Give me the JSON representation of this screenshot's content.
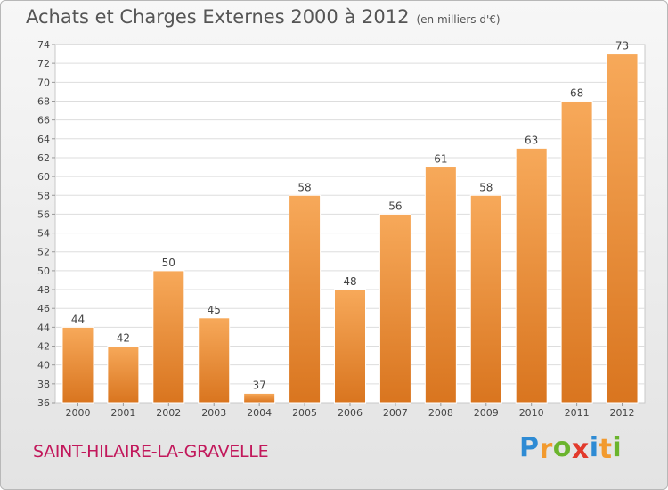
{
  "header": {
    "title": "Achats et Charges Externes 2000 à 2012",
    "unit_note": "(en milliers d'€)"
  },
  "commune": "SAINT-HILAIRE-LA-GRAVELLE",
  "brand": {
    "letters": [
      "P",
      "r",
      "o",
      "x",
      "i",
      "t",
      "i"
    ],
    "colors": [
      "#2e8bd4",
      "#f29a2e",
      "#6ab42d",
      "#e23a2c",
      "#2e8bd4",
      "#f29a2e",
      "#6ab42d"
    ]
  },
  "chart_data": {
    "type": "bar",
    "title": "Achats et Charges Externes 2000 à 2012",
    "subtitle": "(en milliers d'€)",
    "xlabel": "",
    "ylabel": "",
    "categories": [
      "2000",
      "2001",
      "2002",
      "2003",
      "2004",
      "2005",
      "2006",
      "2007",
      "2008",
      "2009",
      "2010",
      "2011",
      "2012"
    ],
    "values": [
      44,
      42,
      50,
      45,
      37,
      58,
      48,
      56,
      61,
      58,
      63,
      68,
      73
    ],
    "ylim": [
      36,
      74
    ],
    "yticks": [
      36,
      38,
      40,
      42,
      44,
      46,
      48,
      50,
      52,
      54,
      56,
      58,
      60,
      62,
      64,
      66,
      68,
      70,
      72,
      74
    ],
    "grid": true,
    "bar_color_light": "#f7a95a",
    "bar_color_dark": "#d9751f",
    "legend": "none"
  }
}
